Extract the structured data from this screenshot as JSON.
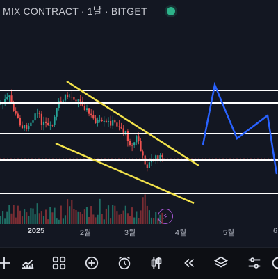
{
  "header": {
    "title": "MIX CONTRACT · 1날 · BITGET",
    "live_indicator_color": "#2db38a"
  },
  "x_axis": {
    "labels": [
      "2025",
      "2월",
      "3월",
      "4월",
      "5월",
      "6"
    ]
  },
  "colors": {
    "background": "#131722",
    "up_candle": "#26a69a",
    "down_candle": "#ef5350",
    "horizontal_line": "#ffffff",
    "trendline": "#f2e24a",
    "projection": "#2962ff",
    "current_price_line": "#ef5350",
    "volume_up": "#1f6e64",
    "volume_down": "#7a2d33"
  },
  "toolbar": {
    "items": [
      {
        "name": "crosshair-icon"
      },
      {
        "name": "indicators-icon"
      },
      {
        "name": "layout-grid-icon"
      },
      {
        "name": "add-icon"
      },
      {
        "name": "alarm-clock-icon"
      },
      {
        "name": "candle-type-icon"
      },
      {
        "name": "replay-icon"
      },
      {
        "name": "layers-icon"
      },
      {
        "name": "settings-sliders-icon"
      },
      {
        "name": "more-icon"
      }
    ]
  },
  "chart_data": {
    "type": "candlestick",
    "title": "MIX CONTRACT · 1날 · BITGET",
    "x_tick_labels": [
      "2025",
      "2월",
      "3월",
      "4월",
      "5월",
      "6"
    ],
    "drawings": {
      "horizontal_levels": 5,
      "descending_channel": true,
      "projected_path": true
    }
  }
}
